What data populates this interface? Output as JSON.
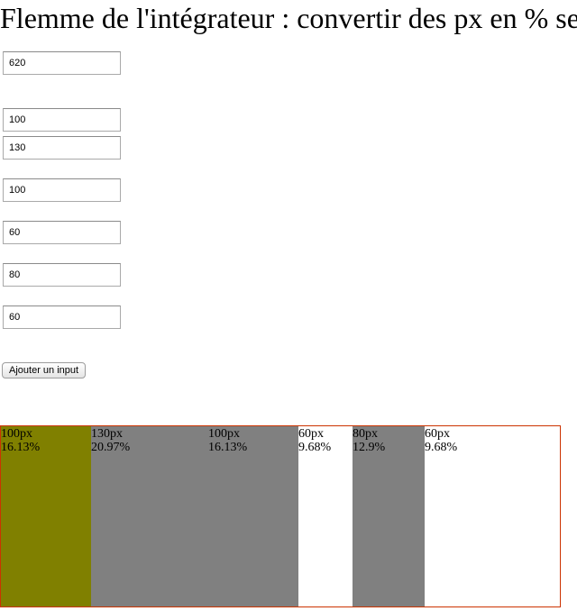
{
  "page": {
    "title": "Flemme de l'intégrateur : convertir des px en % se"
  },
  "container_input": {
    "value": "620"
  },
  "column_inputs": [
    {
      "value": "100"
    },
    {
      "value": "130"
    },
    {
      "value": "100"
    },
    {
      "value": "60"
    },
    {
      "value": "80"
    },
    {
      "value": "60"
    }
  ],
  "add_button": {
    "label": "Ajouter un input"
  },
  "segments": [
    {
      "px": "100px",
      "percent": "16.13%",
      "fraction": 0.1613,
      "color": "#808000"
    },
    {
      "px": "130px",
      "percent": "20.97%",
      "fraction": 0.2097,
      "color": "#808080"
    },
    {
      "px": "100px",
      "percent": "16.13%",
      "fraction": 0.1613,
      "color": "#808080"
    },
    {
      "px": "60px",
      "percent": "9.68%",
      "fraction": 0.0968,
      "color": "#ffffff"
    },
    {
      "px": "80px",
      "percent": "12.9%",
      "fraction": 0.129,
      "color": "#808080"
    },
    {
      "px": "60px",
      "percent": "9.68%",
      "fraction": 0.0968,
      "color": "#ffffff"
    }
  ],
  "colors": {
    "container_border": "#cc3300"
  }
}
